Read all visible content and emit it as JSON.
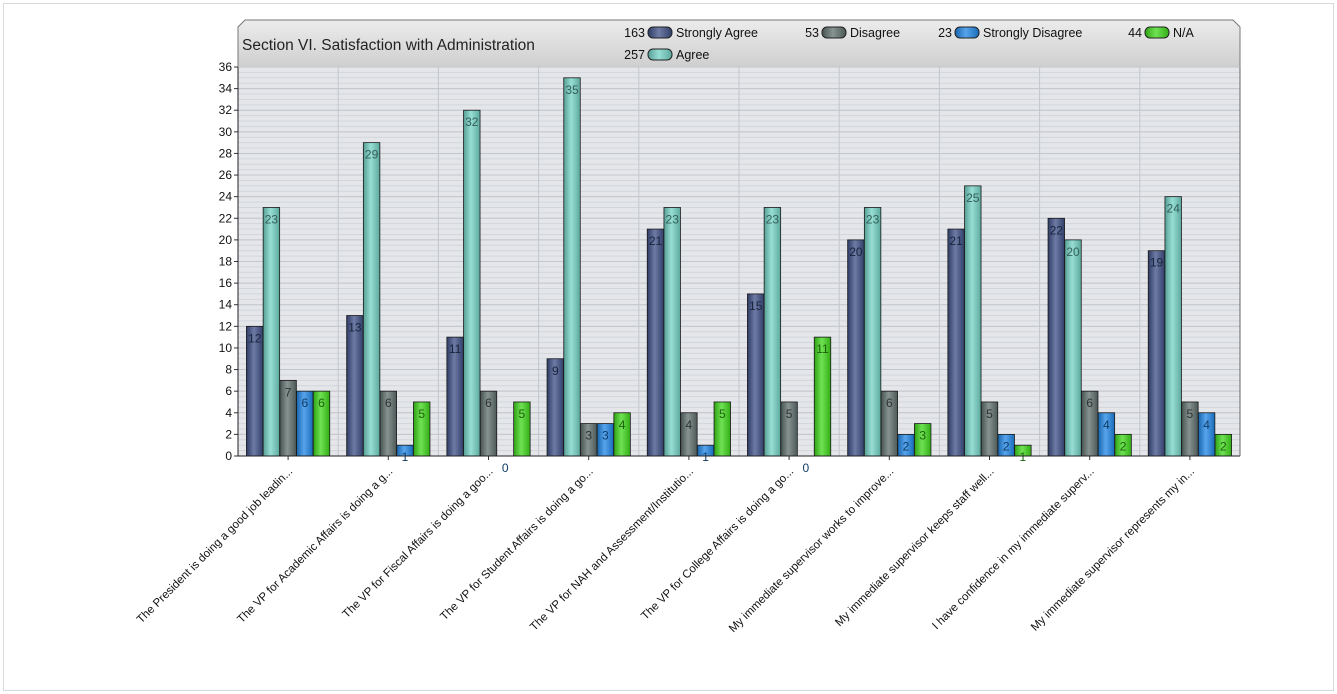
{
  "chart_data": {
    "type": "bar",
    "title": "Section VI. Satisfaction with Administration",
    "xlabel": "",
    "ylabel": "",
    "ylim": [
      0,
      36
    ],
    "ytick_step": 2,
    "grid": true,
    "legend_position": "top-right",
    "categories": [
      "The President is doing a good job leadin...",
      "The VP for Academic Affairs is doing a g...",
      "The VP for Fiscal Affairs is doing a goo...",
      "The VP for Student Affairs is doing a go...",
      "The VP for NAH and Assessment/Institutio...",
      "The VP for College Affairs is doing a go...",
      "My immediate supervisor works to improve...",
      "My immediate supervisor keeps staff well...",
      "I have confidence in my immediate superv...",
      "My immediate supervisor represents my in..."
    ],
    "series": [
      {
        "name": "Strongly Agree",
        "total": "163",
        "color": "#3d4f86",
        "values": [
          12,
          13,
          11,
          9,
          21,
          15,
          20,
          21,
          22,
          19
        ]
      },
      {
        "name": "Agree",
        "total": "257",
        "color": "#74d3c6",
        "values": [
          23,
          29,
          32,
          35,
          23,
          23,
          23,
          25,
          20,
          24
        ]
      },
      {
        "name": "Disagree",
        "total": "53",
        "color": "#5f6f6c",
        "values": [
          7,
          6,
          6,
          3,
          4,
          5,
          6,
          5,
          6,
          5
        ]
      },
      {
        "name": "Strongly Disagree",
        "total": "23",
        "color": "#1f86e6",
        "values": [
          6,
          1,
          0,
          3,
          1,
          0,
          2,
          2,
          4,
          4
        ]
      },
      {
        "name": "N/A",
        "total": "44",
        "color": "#3fd81a",
        "values": [
          6,
          5,
          5,
          4,
          5,
          11,
          3,
          1,
          2,
          2
        ]
      }
    ]
  }
}
